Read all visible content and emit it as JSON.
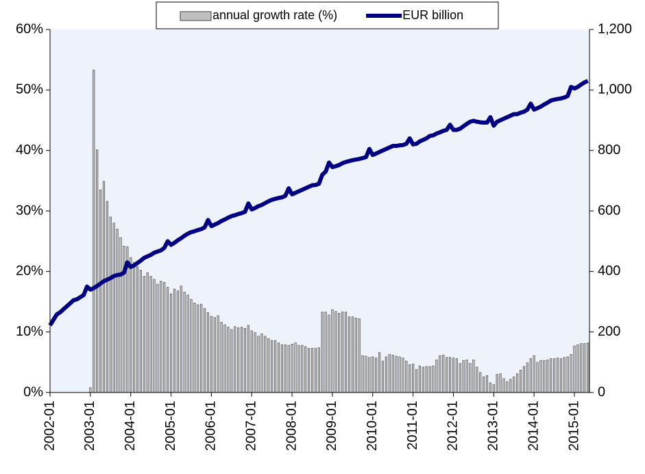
{
  "chart_data": {
    "type": "bar",
    "categories": [
      "2002-01",
      null,
      null,
      null,
      null,
      null,
      null,
      null,
      null,
      null,
      null,
      null,
      "2003-01",
      null,
      null,
      null,
      null,
      null,
      null,
      null,
      null,
      null,
      null,
      null,
      "2004-01",
      null,
      null,
      null,
      null,
      null,
      null,
      null,
      null,
      null,
      null,
      null,
      "2005-01",
      null,
      null,
      null,
      null,
      null,
      null,
      null,
      null,
      null,
      null,
      null,
      "2006-01",
      null,
      null,
      null,
      null,
      null,
      null,
      null,
      null,
      null,
      null,
      null,
      "2007-01",
      null,
      null,
      null,
      null,
      null,
      null,
      null,
      null,
      null,
      null,
      null,
      "2008-01",
      null,
      null,
      null,
      null,
      null,
      null,
      null,
      null,
      null,
      null,
      null,
      "2009-01",
      null,
      null,
      null,
      null,
      null,
      null,
      null,
      null,
      null,
      null,
      null,
      "2010-01",
      null,
      null,
      null,
      null,
      null,
      null,
      null,
      null,
      null,
      null,
      null,
      "2011-01",
      null,
      null,
      null,
      null,
      null,
      null,
      null,
      null,
      null,
      null,
      null,
      "2012-01",
      null,
      null,
      null,
      null,
      null,
      null,
      null,
      null,
      null,
      null,
      null,
      "2013-01",
      null,
      null,
      null,
      null,
      null,
      null,
      null,
      null,
      null,
      null,
      null,
      "2014-01",
      null,
      null,
      null,
      null,
      null,
      null,
      null,
      null,
      null,
      null,
      null,
      "2015-01",
      null,
      null,
      null,
      null
    ],
    "series": [
      {
        "name": "annual growth rate (%)",
        "type": "bar",
        "color": "#c0c0c0",
        "axis": "y",
        "values": [
          null,
          null,
          null,
          null,
          null,
          null,
          null,
          null,
          null,
          null,
          null,
          null,
          0.8,
          53.3,
          40.1,
          33.5,
          34.9,
          31.6,
          29,
          28,
          27,
          25.6,
          24.2,
          24.1,
          22.3,
          21.5,
          20.8,
          20.2,
          19.2,
          19.8,
          19.2,
          18.7,
          17.9,
          18.4,
          18.2,
          17.4,
          16.3,
          17.1,
          16.8,
          17.6,
          16.6,
          16.1,
          15.4,
          14.8,
          14.5,
          14.6,
          13.9,
          13.2,
          12.6,
          12.4,
          12.7,
          11.6,
          11.2,
          10.8,
          10.4,
          10.9,
          10.7,
          10.8,
          10.6,
          11.1,
          10.2,
          9.9,
          9.3,
          9.7,
          9.3,
          8.9,
          8.6,
          8.6,
          8.2,
          7.9,
          7.9,
          7.8,
          8.0,
          8.2,
          7.8,
          7.8,
          7.6,
          7.3,
          7.3,
          7.3,
          7.4,
          13.3,
          13.3,
          12.8,
          13.7,
          13.4,
          13.1,
          13.3,
          13.3,
          12.5,
          12.5,
          12.3,
          12.2,
          6.1,
          6.0,
          5.8,
          5.9,
          5.7,
          6.6,
          5.2,
          5.9,
          6.3,
          6.2,
          6.0,
          5.9,
          5.7,
          5.2,
          4.6,
          4.7,
          3.8,
          4.4,
          4.2,
          4.3,
          4.3,
          4.4,
          5.4,
          6.1,
          6.2,
          5.8,
          5.8,
          5.7,
          5.6,
          4.8,
          5.3,
          5.4,
          4.8,
          5.4,
          4.2,
          3.3,
          2.6,
          2.8,
          1.6,
          1.3,
          3.0,
          3.1,
          2.3,
          1.8,
          2.2,
          2.6,
          3.1,
          3.7,
          4.3,
          4.9,
          5.6,
          6.1,
          5.0,
          5.3,
          5.3,
          5.4,
          5.6,
          5.6,
          5.7,
          5.6,
          5.8,
          5.9,
          6.3,
          7.7,
          7.9,
          8.1,
          8.1,
          8.2
        ]
      },
      {
        "name": "EUR billion",
        "type": "line",
        "color": "#000080",
        "axis": "y2",
        "values": [
          222,
          240,
          258,
          265,
          275,
          285,
          295,
          305,
          308,
          315,
          322,
          350,
          340,
          345,
          352,
          360,
          368,
          373,
          378,
          385,
          388,
          390,
          396,
          430,
          415,
          420,
          428,
          436,
          445,
          450,
          455,
          462,
          466,
          470,
          478,
          500,
          488,
          495,
          503,
          510,
          518,
          525,
          530,
          533,
          537,
          540,
          546,
          570,
          550,
          555,
          560,
          567,
          572,
          578,
          583,
          586,
          590,
          593,
          597,
          625,
          605,
          610,
          616,
          620,
          626,
          632,
          637,
          640,
          643,
          645,
          650,
          675,
          655,
          660,
          665,
          670,
          675,
          680,
          685,
          686,
          690,
          720,
          730,
          760,
          745,
          748,
          752,
          758,
          762,
          765,
          768,
          770,
          772,
          775,
          778,
          805,
          785,
          790,
          795,
          800,
          805,
          810,
          815,
          815,
          817,
          818,
          822,
          840,
          820,
          822,
          830,
          835,
          840,
          848,
          850,
          856,
          860,
          865,
          868,
          885,
          868,
          868,
          872,
          880,
          888,
          895,
          898,
          895,
          893,
          892,
          892,
          910,
          882,
          895,
          900,
          905,
          910,
          915,
          920,
          920,
          925,
          928,
          935,
          955,
          935,
          940,
          945,
          952,
          958,
          965,
          968,
          970,
          972,
          975,
          980,
          1010,
          1005,
          1010,
          1018,
          1025,
          1030
        ]
      }
    ],
    "ylim": [
      0,
      60
    ],
    "yticks": [
      {
        "value": 0,
        "label": "0%"
      },
      {
        "value": 10,
        "label": "10%"
      },
      {
        "value": 20,
        "label": "20%"
      },
      {
        "value": 30,
        "label": "30%"
      },
      {
        "value": 40,
        "label": "40%"
      },
      {
        "value": 50,
        "label": "50%"
      },
      {
        "value": 60,
        "label": "60%"
      }
    ],
    "y2lim": [
      0,
      1200
    ],
    "y2ticks": [
      0,
      200,
      400,
      600,
      800,
      {
        "value": 1000,
        "label": "1,000"
      },
      {
        "value": 1200,
        "label": "1,200"
      }
    ],
    "legend": "top"
  }
}
